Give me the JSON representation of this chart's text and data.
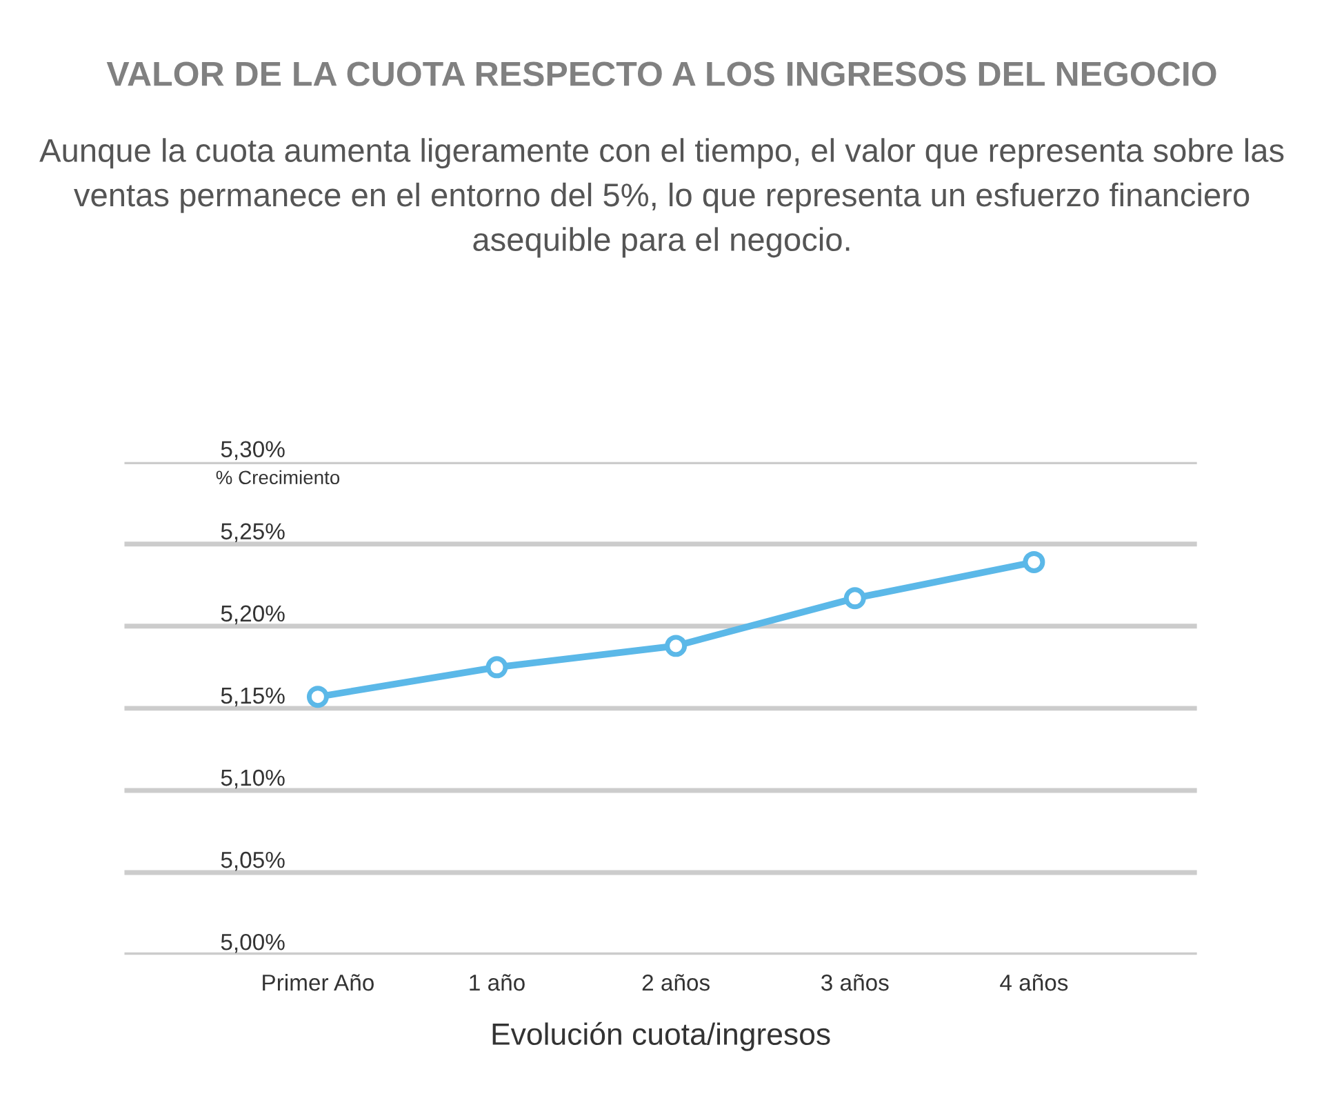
{
  "chart_data": {
    "type": "line",
    "title": "VALOR DE LA CUOTA RESPECTO A LOS INGRESOS DEL NEGOCIO",
    "subtitle": "Aunque la cuota aumenta ligeramente con el tiempo, el valor que representa sobre las ventas permanece en el entorno del 5%, lo que representa un esfuerzo financiero asequible para el negocio.",
    "xlabel": "Evolución cuota/ingresos",
    "annotations": [
      "% Crecimiento"
    ],
    "categories": [
      "Primer Año",
      "1 año",
      "2 años",
      "3 años",
      "4 años"
    ],
    "series": [
      {
        "color": "#5bb8e8",
        "values": [
          5.157,
          5.175,
          5.188,
          5.217,
          5.239
        ]
      }
    ],
    "ylim": [
      5.0,
      5.3
    ],
    "yticks": [
      {
        "value": 5.0,
        "label": "5,00%"
      },
      {
        "value": 5.05,
        "label": "5,05%"
      },
      {
        "value": 5.1,
        "label": "5,10%"
      },
      {
        "value": 5.15,
        "label": "5,15%"
      },
      {
        "value": 5.2,
        "label": "5,20%"
      },
      {
        "value": 5.25,
        "label": "5,25%"
      },
      {
        "value": 5.3,
        "label": "5,30%"
      }
    ],
    "grid": "y",
    "legend": false,
    "marker": "circle",
    "line_style": "solid"
  }
}
